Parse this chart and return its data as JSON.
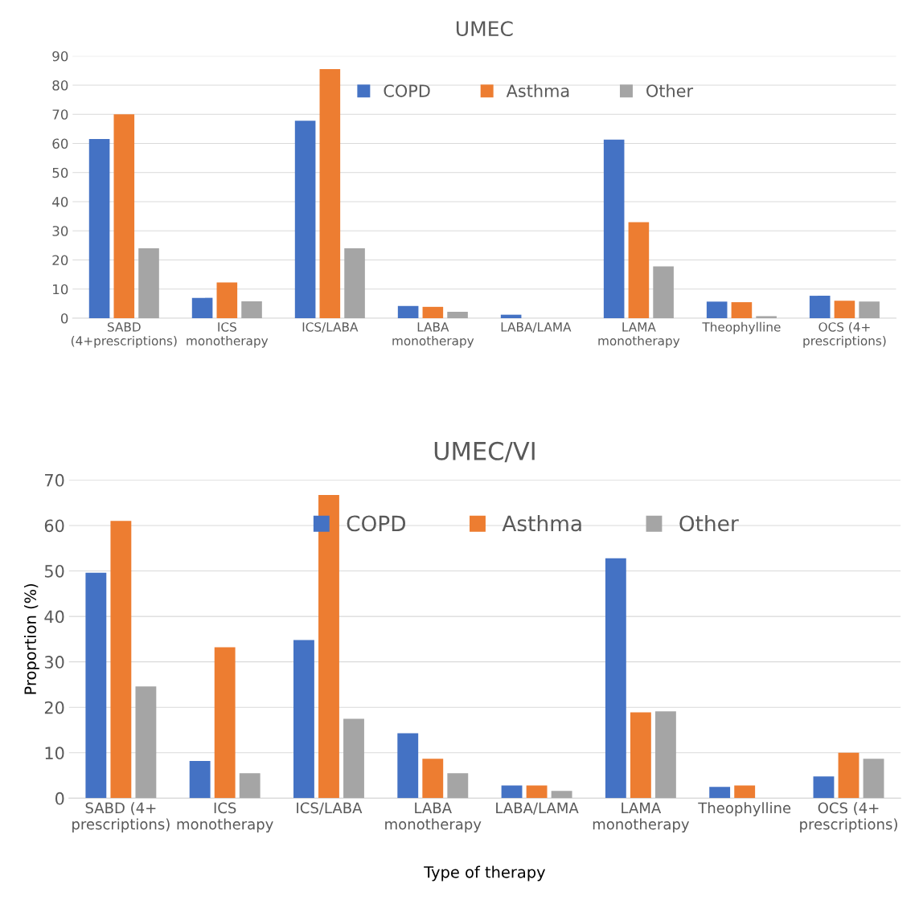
{
  "chart_data": [
    {
      "type": "bar",
      "title": "UMEC",
      "categories": [
        "SABD\n(4+prescriptions)",
        "ICS\nmonotherapy",
        "ICS/LABA",
        "LABA\nmonotherapy",
        "LABA/LAMA",
        "LAMA\nmonotherapy",
        "Theophylline",
        "OCS (4+\nprescriptions)"
      ],
      "series": [
        {
          "name": "COPD",
          "color": "#4472c4",
          "values": [
            61.5,
            7,
            67.8,
            4.2,
            1.2,
            61.3,
            5.7,
            7.7
          ]
        },
        {
          "name": "Asthma",
          "color": "#ed7d31",
          "values": [
            70,
            12.3,
            85.5,
            3.9,
            0,
            33,
            5.5,
            6
          ]
        },
        {
          "name": "Other",
          "color": "#a5a5a5",
          "values": [
            24,
            5.8,
            24,
            2.2,
            0,
            17.8,
            0.7,
            5.7
          ]
        }
      ],
      "ylim": [
        0,
        90
      ],
      "yticks": [
        0,
        10,
        20,
        30,
        40,
        50,
        60,
        70,
        80,
        90
      ],
      "grid": "y",
      "legend": "top"
    },
    {
      "type": "bar",
      "title": "UMEC/VI",
      "xlabel": "Type of therapy",
      "ylabel": "Proportion (%)",
      "categories": [
        "SABD (4+\nprescriptions)",
        "ICS\nmonotherapy",
        "ICS/LABA",
        "LABA\nmonotherapy",
        "LABA/LAMA",
        "LAMA\nmonotherapy",
        "Theophylline",
        "OCS (4+\nprescriptions)"
      ],
      "series": [
        {
          "name": "COPD",
          "color": "#4472c4",
          "values": [
            49.6,
            8.2,
            34.8,
            14.3,
            2.8,
            52.8,
            2.5,
            4.8
          ]
        },
        {
          "name": "Asthma",
          "color": "#ed7d31",
          "values": [
            61,
            33.2,
            66.7,
            8.7,
            2.8,
            18.9,
            2.8,
            10
          ]
        },
        {
          "name": "Other",
          "color": "#a5a5a5",
          "values": [
            24.6,
            5.5,
            17.5,
            5.5,
            1.6,
            19.1,
            0,
            8.7
          ]
        }
      ],
      "ylim": [
        0,
        70
      ],
      "yticks": [
        0,
        10,
        20,
        30,
        40,
        50,
        60,
        70
      ],
      "grid": "y",
      "legend": "top"
    }
  ]
}
